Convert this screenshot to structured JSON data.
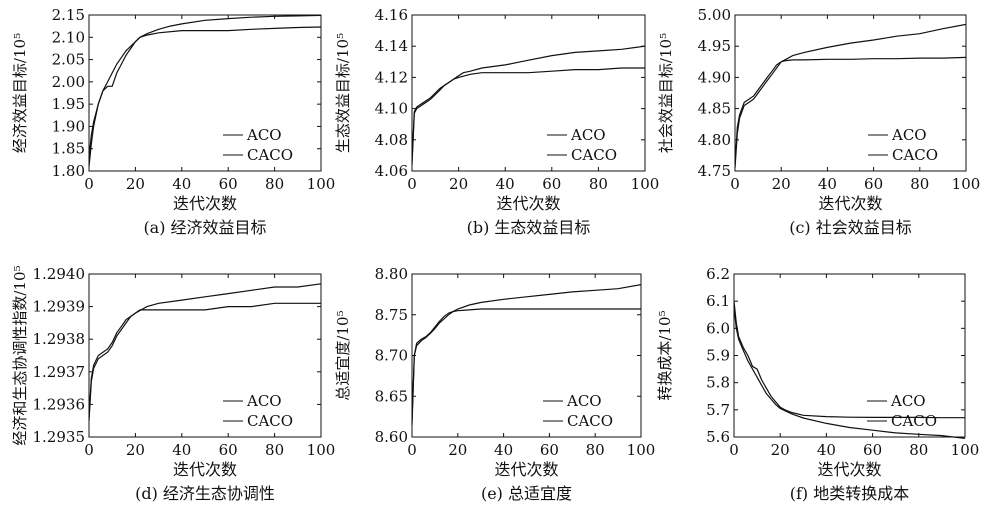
{
  "chart_data": [
    {
      "type": "line",
      "caption": "(a) 经济效益目标",
      "xlabel": "迭代次数",
      "ylabel": "经济效益目标/10⁵",
      "xlim": [
        0,
        100
      ],
      "ylim": [
        1.8,
        2.15
      ],
      "xticks": [
        "0",
        "20",
        "40",
        "60",
        "80",
        "100"
      ],
      "yticks": [
        "1.80",
        "1.85",
        "1.90",
        "1.95",
        "2.00",
        "2.05",
        "2.10",
        "2.15"
      ],
      "legend": "lower-right",
      "series": [
        {
          "name": "ACO",
          "x": [
            0,
            1,
            2,
            4,
            6,
            8,
            10,
            12,
            14,
            16,
            18,
            20,
            22,
            25,
            30,
            40,
            50,
            60,
            70,
            80,
            90,
            100
          ],
          "y": [
            1.81,
            1.86,
            1.9,
            1.95,
            1.98,
            1.99,
            1.99,
            2.02,
            2.04,
            2.06,
            2.075,
            2.09,
            2.1,
            2.105,
            2.11,
            2.115,
            2.115,
            2.115,
            2.118,
            2.12,
            2.122,
            2.123
          ]
        },
        {
          "name": "CACO",
          "x": [
            0,
            1,
            2,
            4,
            6,
            8,
            10,
            12,
            14,
            16,
            18,
            20,
            22,
            25,
            30,
            35,
            40,
            50,
            60,
            70,
            80,
            90,
            100
          ],
          "y": [
            1.83,
            1.88,
            1.91,
            1.95,
            1.98,
            2.0,
            2.02,
            2.04,
            2.055,
            2.07,
            2.08,
            2.09,
            2.1,
            2.108,
            2.118,
            2.125,
            2.13,
            2.138,
            2.142,
            2.145,
            2.147,
            2.148,
            2.149
          ]
        }
      ]
    },
    {
      "type": "line",
      "caption": "(b) 生态效益目标",
      "xlabel": "迭代次数",
      "ylabel": "生态效益目标/10⁵",
      "xlim": [
        0,
        100
      ],
      "ylim": [
        4.06,
        4.16
      ],
      "xticks": [
        "0",
        "20",
        "40",
        "60",
        "80",
        "100"
      ],
      "yticks": [
        "4.06",
        "4.08",
        "4.10",
        "4.12",
        "4.14",
        "4.16"
      ],
      "legend": "lower-right",
      "series": [
        {
          "name": "ACO",
          "x": [
            0,
            1,
            2,
            4,
            6,
            8,
            10,
            12,
            14,
            16,
            18,
            20,
            25,
            30,
            40,
            50,
            60,
            70,
            80,
            90,
            100
          ],
          "y": [
            4.066,
            4.098,
            4.101,
            4.103,
            4.105,
            4.107,
            4.11,
            4.113,
            4.115,
            4.117,
            4.119,
            4.12,
            4.122,
            4.123,
            4.123,
            4.123,
            4.124,
            4.125,
            4.125,
            4.126,
            4.126
          ]
        },
        {
          "name": "CACO",
          "x": [
            0,
            1,
            2,
            4,
            6,
            8,
            10,
            12,
            14,
            16,
            18,
            20,
            22,
            25,
            30,
            40,
            50,
            60,
            70,
            80,
            90,
            100
          ],
          "y": [
            4.064,
            4.097,
            4.1,
            4.102,
            4.104,
            4.106,
            4.109,
            4.112,
            4.115,
            4.117,
            4.119,
            4.121,
            4.123,
            4.124,
            4.126,
            4.128,
            4.131,
            4.134,
            4.136,
            4.137,
            4.138,
            4.14
          ]
        }
      ]
    },
    {
      "type": "line",
      "caption": "(c) 社会效益目标",
      "xlabel": "迭代次数",
      "ylabel": "社会效益目标/10⁵",
      "xlim": [
        0,
        100
      ],
      "ylim": [
        4.75,
        5.0
      ],
      "xticks": [
        "0",
        "20",
        "40",
        "60",
        "80",
        "100"
      ],
      "yticks": [
        "4.75",
        "4.80",
        "4.85",
        "4.90",
        "4.95",
        "5.00"
      ],
      "legend": "lower-right",
      "series": [
        {
          "name": "ACO",
          "x": [
            0,
            1,
            2,
            4,
            6,
            8,
            10,
            12,
            14,
            16,
            18,
            20,
            22,
            25,
            30,
            40,
            50,
            60,
            70,
            80,
            90,
            100
          ],
          "y": [
            4.76,
            4.82,
            4.84,
            4.86,
            4.865,
            4.87,
            4.88,
            4.89,
            4.9,
            4.91,
            4.92,
            4.925,
            4.927,
            4.928,
            4.928,
            4.929,
            4.929,
            4.93,
            4.93,
            4.931,
            4.931,
            4.932
          ]
        },
        {
          "name": "CACO",
          "x": [
            0,
            1,
            2,
            4,
            6,
            8,
            10,
            12,
            14,
            16,
            18,
            20,
            25,
            30,
            40,
            50,
            60,
            70,
            80,
            90,
            100
          ],
          "y": [
            4.755,
            4.81,
            4.835,
            4.855,
            4.86,
            4.865,
            4.875,
            4.885,
            4.895,
            4.905,
            4.915,
            4.925,
            4.935,
            4.94,
            4.948,
            4.955,
            4.96,
            4.966,
            4.97,
            4.978,
            4.985
          ]
        }
      ]
    },
    {
      "type": "line",
      "caption": "(d) 经济生态协调性",
      "xlabel": "迭代次数",
      "ylabel": "经济和生态协调性指数/10⁵",
      "xlim": [
        0,
        100
      ],
      "ylim": [
        1.2935,
        1.294
      ],
      "xticks": [
        "0",
        "20",
        "40",
        "60",
        "80",
        "100"
      ],
      "yticks": [
        "1.2935",
        "1.2936",
        "1.2937",
        "1.2938",
        "1.2939",
        "1.2940"
      ],
      "legend": "lower-right",
      "series": [
        {
          "name": "ACO",
          "x": [
            0,
            1,
            2,
            4,
            6,
            8,
            10,
            12,
            14,
            16,
            18,
            20,
            22,
            25,
            30,
            40,
            50,
            60,
            70,
            80,
            90,
            100
          ],
          "y": [
            1.29356,
            1.29368,
            1.29372,
            1.29375,
            1.29376,
            1.29377,
            1.29379,
            1.29382,
            1.29384,
            1.29386,
            1.29387,
            1.29388,
            1.29389,
            1.29389,
            1.29389,
            1.29389,
            1.29389,
            1.2939,
            1.2939,
            1.29391,
            1.29391,
            1.29391
          ]
        },
        {
          "name": "CACO",
          "x": [
            0,
            1,
            2,
            4,
            6,
            8,
            10,
            12,
            14,
            16,
            18,
            20,
            25,
            30,
            40,
            50,
            60,
            70,
            80,
            90,
            100
          ],
          "y": [
            1.29355,
            1.29367,
            1.29371,
            1.29374,
            1.29375,
            1.29376,
            1.29378,
            1.29381,
            1.29383,
            1.29385,
            1.29387,
            1.29388,
            1.2939,
            1.29391,
            1.29392,
            1.29393,
            1.29394,
            1.29395,
            1.29396,
            1.29396,
            1.29397
          ]
        }
      ]
    },
    {
      "type": "line",
      "caption": "(e) 总适宜度",
      "xlabel": "迭代次数",
      "ylabel": "总适宜度/10⁵",
      "xlim": [
        0,
        100
      ],
      "ylim": [
        8.6,
        8.8
      ],
      "xticks": [
        "0",
        "20",
        "40",
        "60",
        "80",
        "100"
      ],
      "yticks": [
        "8.60",
        "8.65",
        "8.70",
        "8.75",
        "8.80"
      ],
      "legend": "lower-right",
      "series": [
        {
          "name": "ACO",
          "x": [
            0,
            1,
            2,
            4,
            6,
            8,
            10,
            12,
            14,
            16,
            18,
            20,
            25,
            30,
            40,
            50,
            60,
            70,
            80,
            90,
            100
          ],
          "y": [
            8.62,
            8.7,
            8.715,
            8.72,
            8.723,
            8.728,
            8.735,
            8.742,
            8.748,
            8.752,
            8.754,
            8.755,
            8.756,
            8.757,
            8.757,
            8.757,
            8.757,
            8.757,
            8.757,
            8.757,
            8.757
          ]
        },
        {
          "name": "CACO",
          "x": [
            0,
            1,
            2,
            4,
            6,
            8,
            10,
            12,
            14,
            16,
            18,
            20,
            25,
            30,
            40,
            50,
            60,
            70,
            80,
            90,
            100
          ],
          "y": [
            8.615,
            8.7,
            8.712,
            8.718,
            8.722,
            8.727,
            8.733,
            8.74,
            8.745,
            8.75,
            8.754,
            8.757,
            8.762,
            8.765,
            8.769,
            8.772,
            8.775,
            8.778,
            8.78,
            8.782,
            8.787
          ]
        }
      ]
    },
    {
      "type": "line",
      "caption": "(f) 地类转换成本",
      "xlabel": "迭代次数",
      "ylabel": "转换成本/10⁵",
      "xlim": [
        0,
        100
      ],
      "ylim": [
        5.6,
        6.2
      ],
      "xticks": [
        "0",
        "20",
        "40",
        "60",
        "80",
        "100"
      ],
      "yticks": [
        "5.6",
        "5.7",
        "5.8",
        "5.9",
        "6.0",
        "6.1",
        "6.2"
      ],
      "legend": "lower-right",
      "series": [
        {
          "name": "ACO",
          "x": [
            0,
            1,
            2,
            4,
            6,
            8,
            10,
            12,
            14,
            16,
            18,
            20,
            22,
            25,
            30,
            40,
            50,
            60,
            70,
            80,
            90,
            100
          ],
          "y": [
            6.1,
            6.02,
            5.97,
            5.93,
            5.9,
            5.86,
            5.85,
            5.81,
            5.78,
            5.75,
            5.73,
            5.71,
            5.7,
            5.69,
            5.68,
            5.675,
            5.673,
            5.672,
            5.672,
            5.672,
            5.671,
            5.671
          ]
        },
        {
          "name": "CACO",
          "x": [
            0,
            1,
            2,
            4,
            6,
            8,
            10,
            12,
            14,
            16,
            18,
            20,
            25,
            30,
            40,
            50,
            60,
            70,
            80,
            90,
            100
          ],
          "y": [
            6.08,
            6.0,
            5.96,
            5.92,
            5.88,
            5.85,
            5.82,
            5.79,
            5.76,
            5.74,
            5.72,
            5.705,
            5.685,
            5.67,
            5.65,
            5.635,
            5.625,
            5.615,
            5.61,
            5.605,
            5.595
          ]
        }
      ]
    }
  ]
}
